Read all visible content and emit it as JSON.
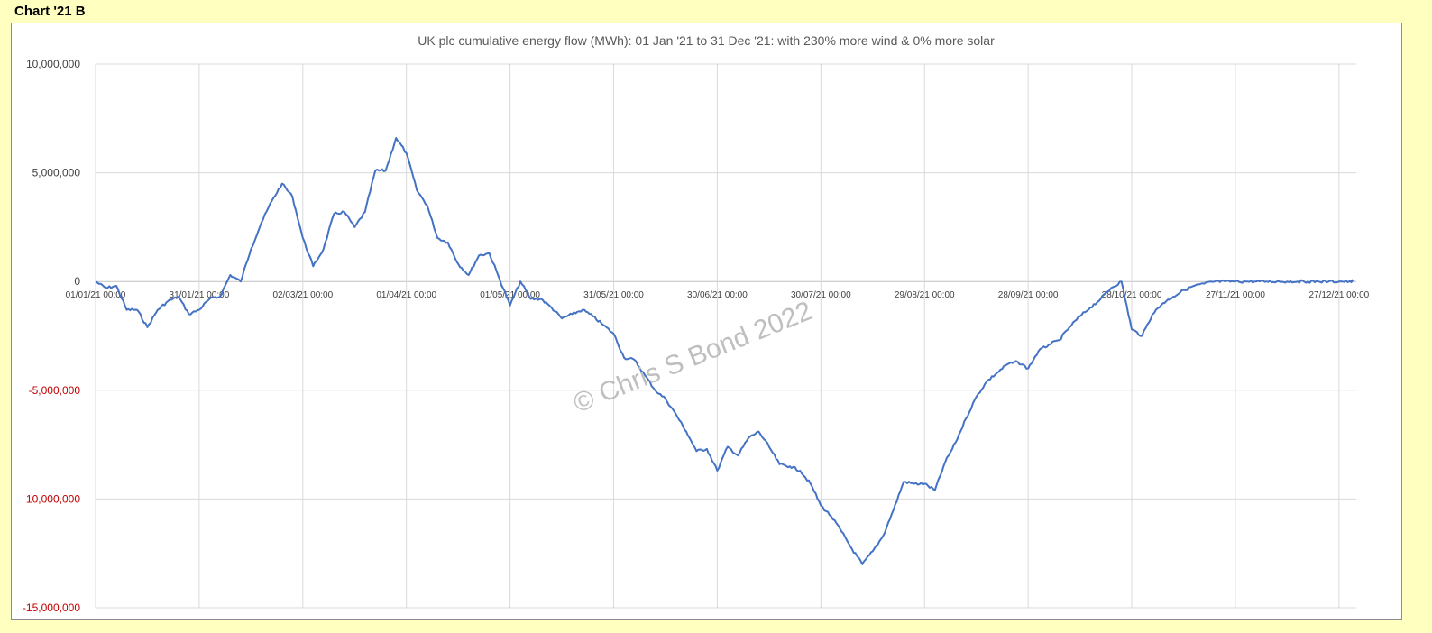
{
  "sheet": {
    "title": "Chart '21 B"
  },
  "colors": {
    "background": "#ffffc0",
    "series": "#4472c4",
    "negative_tick": "#c00000",
    "tick": "#404040",
    "grid": "#d9d9d9",
    "watermark": "#bfbfbf"
  },
  "watermark": "© Chris S Bond 2022",
  "chart_data": {
    "type": "line",
    "title": "UK plc cumulative energy flow (MWh): 01 Jan '21 to 31 Dec '21: with 230% more wind & 0% more solar",
    "xlabel": "",
    "ylabel": "",
    "ylim": [
      -15000000,
      10000000
    ],
    "y_ticks": [
      10000000,
      5000000,
      0,
      -5000000,
      -10000000,
      -15000000
    ],
    "y_tick_labels": [
      "10,000,000",
      "5,000,000",
      "0",
      "-5,000,000",
      "-10,000,000",
      "-15,000,000"
    ],
    "x_range": [
      "2021-01-01",
      "2022-01-01"
    ],
    "x_tick_labels": [
      {
        "date": "2021-01-01",
        "label": "01/01/21 00:00"
      },
      {
        "date": "2021-01-31",
        "label": "31/01/21 00:00"
      },
      {
        "date": "2021-03-02",
        "label": "02/03/21 00:00"
      },
      {
        "date": "2021-04-01",
        "label": "01/04/21 00:00"
      },
      {
        "date": "2021-05-01",
        "label": "01/05/21 00:00"
      },
      {
        "date": "2021-05-31",
        "label": "31/05/21 00:00"
      },
      {
        "date": "2021-06-30",
        "label": "30/06/21 00:00"
      },
      {
        "date": "2021-07-30",
        "label": "30/07/21 00:00"
      },
      {
        "date": "2021-08-29",
        "label": "29/08/21 00:00"
      },
      {
        "date": "2021-09-28",
        "label": "28/09/21 00:00"
      },
      {
        "date": "2021-10-28",
        "label": "28/10/21 00:00"
      },
      {
        "date": "2021-11-27",
        "label": "27/11/21 00:00"
      },
      {
        "date": "2021-12-27",
        "label": "27/12/21 00:00"
      }
    ],
    "grid": true,
    "legend": "none",
    "series": [
      {
        "x": [
          "2021-01-01",
          "2021-01-04",
          "2021-01-07",
          "2021-01-10",
          "2021-01-13",
          "2021-01-16",
          "2021-01-19",
          "2021-01-22",
          "2021-01-25",
          "2021-01-28",
          "2021-01-31",
          "2021-02-03",
          "2021-02-06",
          "2021-02-09",
          "2021-02-12",
          "2021-02-15",
          "2021-02-18",
          "2021-02-21",
          "2021-02-24",
          "2021-02-27",
          "2021-03-02",
          "2021-03-05",
          "2021-03-08",
          "2021-03-11",
          "2021-03-14",
          "2021-03-17",
          "2021-03-20",
          "2021-03-23",
          "2021-03-26",
          "2021-03-29",
          "2021-04-01",
          "2021-04-04",
          "2021-04-07",
          "2021-04-10",
          "2021-04-13",
          "2021-04-16",
          "2021-04-19",
          "2021-04-22",
          "2021-04-25",
          "2021-04-28",
          "2021-05-01",
          "2021-05-04",
          "2021-05-07",
          "2021-05-10",
          "2021-05-13",
          "2021-05-16",
          "2021-05-19",
          "2021-05-22",
          "2021-05-25",
          "2021-05-28",
          "2021-05-31",
          "2021-06-03",
          "2021-06-06",
          "2021-06-09",
          "2021-06-12",
          "2021-06-15",
          "2021-06-18",
          "2021-06-21",
          "2021-06-24",
          "2021-06-27",
          "2021-06-30",
          "2021-07-03",
          "2021-07-06",
          "2021-07-09",
          "2021-07-12",
          "2021-07-15",
          "2021-07-18",
          "2021-07-21",
          "2021-07-24",
          "2021-07-27",
          "2021-07-30",
          "2021-08-02",
          "2021-08-05",
          "2021-08-08",
          "2021-08-11",
          "2021-08-14",
          "2021-08-17",
          "2021-08-20",
          "2021-08-23",
          "2021-08-26",
          "2021-08-29",
          "2021-09-01",
          "2021-09-04",
          "2021-09-07",
          "2021-09-10",
          "2021-09-13",
          "2021-09-16",
          "2021-09-19",
          "2021-09-22",
          "2021-09-25",
          "2021-09-28",
          "2021-10-01",
          "2021-10-04",
          "2021-10-07",
          "2021-10-10",
          "2021-10-13",
          "2021-10-16",
          "2021-10-19",
          "2021-10-22",
          "2021-10-25",
          "2021-10-28",
          "2021-10-31",
          "2021-11-03",
          "2021-11-06",
          "2021-11-09",
          "2021-11-12",
          "2021-11-15",
          "2021-11-18",
          "2021-11-21",
          "2021-11-24",
          "2021-11-27",
          "2021-11-30",
          "2021-12-03",
          "2021-12-06",
          "2021-12-09",
          "2021-12-12",
          "2021-12-15",
          "2021-12-18",
          "2021-12-21",
          "2021-12-24",
          "2021-12-27",
          "2021-12-30",
          "2021-12-31"
        ],
        "values": [
          0,
          -300000,
          -200000,
          -1300000,
          -1300000,
          -2100000,
          -1300000,
          -900000,
          -700000,
          -1500000,
          -1300000,
          -800000,
          -700000,
          300000,
          0,
          1500000,
          2700000,
          3700000,
          4500000,
          3900000,
          2000000,
          700000,
          1500000,
          3100000,
          3200000,
          2500000,
          3200000,
          5100000,
          5100000,
          6600000,
          5900000,
          4200000,
          3500000,
          2000000,
          1800000,
          800000,
          300000,
          1200000,
          1300000,
          100000,
          -1100000,
          0,
          -800000,
          -800000,
          -1200000,
          -1700000,
          -1500000,
          -1300000,
          -1600000,
          -2000000,
          -2400000,
          -3500000,
          -3600000,
          -4300000,
          -5000000,
          -5400000,
          -6100000,
          -6900000,
          -7800000,
          -7700000,
          -8700000,
          -7600000,
          -8000000,
          -7200000,
          -6900000,
          -7600000,
          -8400000,
          -8500000,
          -8700000,
          -9300000,
          -10300000,
          -10800000,
          -11500000,
          -12300000,
          -13000000,
          -12400000,
          -11700000,
          -10500000,
          -9200000,
          -9300000,
          -9300000,
          -9600000,
          -8300000,
          -7400000,
          -6300000,
          -5300000,
          -4600000,
          -4200000,
          -3800000,
          -3700000,
          -4000000,
          -3200000,
          -2900000,
          -2700000,
          -2100000,
          -1600000,
          -1200000,
          -800000,
          -300000,
          0,
          -2200000,
          -2500000,
          -1500000,
          -1000000,
          -700000,
          -400000,
          -200000,
          -100000,
          0,
          0,
          0,
          0,
          0,
          0,
          0,
          0,
          0,
          0,
          0,
          0,
          0,
          0,
          0
        ],
        "values_note": ""
      }
    ]
  }
}
